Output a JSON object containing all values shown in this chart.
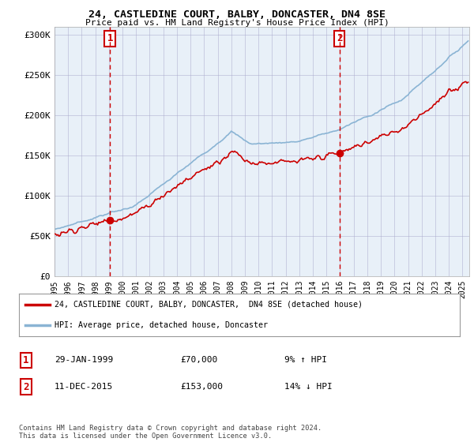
{
  "title_line1": "24, CASTLEDINE COURT, BALBY, DONCASTER, DN4 8SE",
  "title_line2": "Price paid vs. HM Land Registry's House Price Index (HPI)",
  "ylabel_ticks": [
    "£0",
    "£50K",
    "£100K",
    "£150K",
    "£200K",
    "£250K",
    "£300K"
  ],
  "ytick_values": [
    0,
    50000,
    100000,
    150000,
    200000,
    250000,
    300000
  ],
  "ylim": [
    0,
    310000
  ],
  "xlim_start": 1995.0,
  "xlim_end": 2025.5,
  "sale1_date": 1999.08,
  "sale1_price": 70000,
  "sale2_date": 2015.95,
  "sale2_price": 153000,
  "legend_line1": "24, CASTLEDINE COURT, BALBY, DONCASTER,  DN4 8SE (detached house)",
  "legend_line2": "HPI: Average price, detached house, Doncaster",
  "table_row1": [
    "1",
    "29-JAN-1999",
    "£70,000",
    "9% ↑ HPI"
  ],
  "table_row2": [
    "2",
    "11-DEC-2015",
    "£153,000",
    "14% ↓ HPI"
  ],
  "footer": "Contains HM Land Registry data © Crown copyright and database right 2024.\nThis data is licensed under the Open Government Licence v3.0.",
  "hpi_color": "#8ab4d4",
  "price_color": "#cc0000",
  "vline_color": "#cc0000",
  "bg_chart": "#e8f0f8",
  "background_color": "#ffffff",
  "grid_color": "#aaaacc"
}
